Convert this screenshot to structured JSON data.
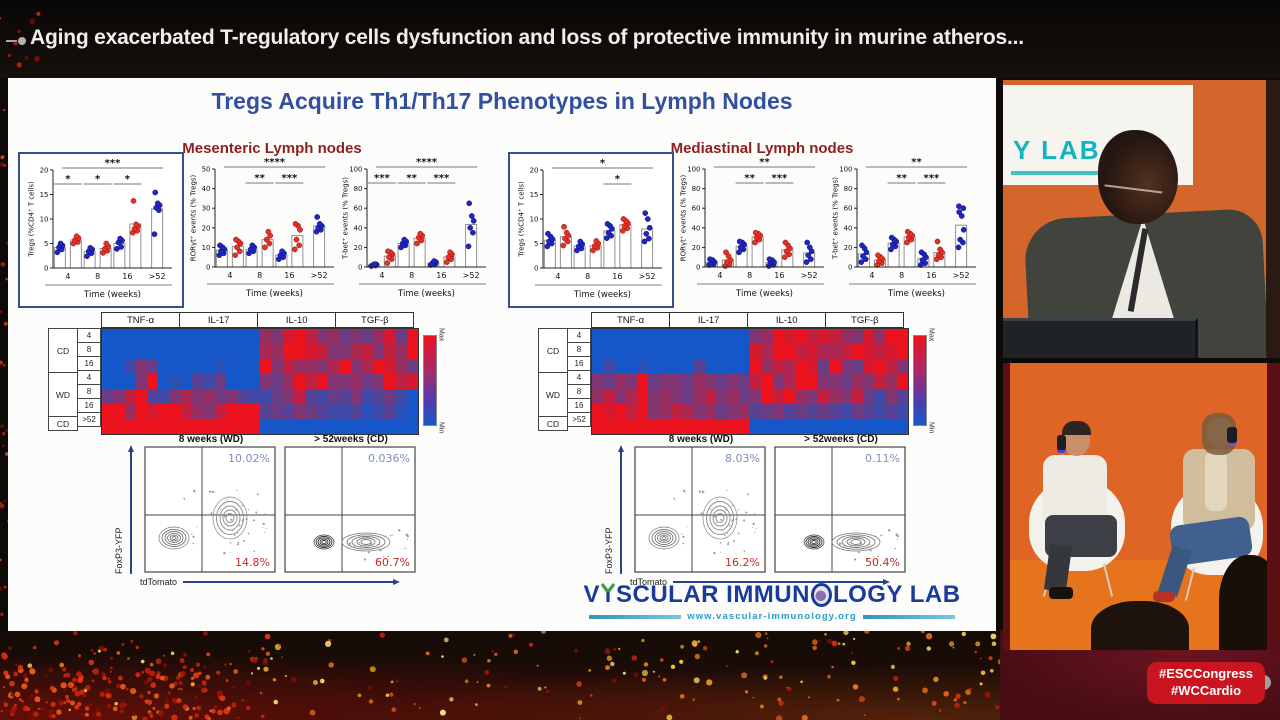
{
  "header": {
    "title": "Aging exacerbated T-regulatory cells dysfunction and loss of protective immunity in murine atheros..."
  },
  "slide": {
    "title": "Tregs Acquire Th1/Th17 Phenotypes in Lymph Nodes",
    "panels": [
      {
        "key": "mesenteric",
        "heading": "Mesenteric Lymph nodes"
      },
      {
        "key": "mediastinal",
        "heading": "Mediastinal Lymph nodes"
      }
    ],
    "logo": {
      "part1": "V",
      "part2": "SCULAR IMMUN",
      "part3": "LOGY LAB",
      "url": "www.vascular-immunology.org"
    }
  },
  "chart_data": [
    {
      "key": "m-tregs",
      "type": "scatter",
      "panel": "Mesenteric Lymph nodes",
      "ylabel": "Tregs (%CD4⁺ T cells)",
      "xlabel": "Time (weeks)",
      "ylim": [
        0,
        20
      ],
      "yticks": [
        0,
        5,
        10,
        15,
        20
      ],
      "categories": [
        "4",
        "8",
        "16",
        ">52"
      ],
      "series_colors": {
        "blue": "#2025c8",
        "red": "#e63126"
      },
      "blue": [
        [
          3.2,
          3.8,
          4.2,
          4.6,
          5.0
        ],
        [
          2.4,
          3.0,
          3.4,
          3.8,
          4.1
        ],
        [
          3.9,
          4.3,
          5.2,
          5.6,
          6.0
        ],
        [
          6.9,
          11.8,
          12.3,
          12.8,
          13.2,
          15.4
        ]
      ],
      "red": [
        [
          5.0,
          5.3,
          5.7,
          6.1,
          6.5
        ],
        [
          3.1,
          3.5,
          3.9,
          4.4,
          5.0
        ],
        [
          7.2,
          7.6,
          8.0,
          8.5,
          8.9,
          13.7
        ],
        null
      ],
      "sig_overall": "***",
      "sig_groups": [
        "*",
        "*",
        "*",
        null
      ]
    },
    {
      "key": "m-roryt",
      "type": "scatter",
      "panel": "Mesenteric Lymph nodes",
      "ylabel": "RORγt⁺ events (% Tregs)",
      "xlabel": "Time (weeks)",
      "ylim": [
        0,
        50
      ],
      "yticks": [
        0,
        10,
        20,
        30,
        40,
        50
      ],
      "categories": [
        "4",
        "8",
        "16",
        ">52"
      ],
      "series_colors": {
        "blue": "#2025c8",
        "red": "#e63126"
      },
      "blue": [
        [
          6,
          7,
          8,
          9,
          10,
          11
        ],
        [
          7,
          8,
          9,
          10,
          11
        ],
        [
          4,
          5,
          6,
          7,
          8
        ],
        [
          18,
          19,
          20,
          21,
          22,
          25.5
        ]
      ],
      "red": [
        [
          6,
          8,
          10,
          12,
          13,
          14
        ],
        [
          10,
          12,
          14,
          16,
          18
        ],
        [
          9,
          11,
          14,
          19,
          21,
          22
        ],
        null
      ],
      "sig_overall": "****",
      "sig_groups": [
        null,
        "**",
        "***",
        null
      ]
    },
    {
      "key": "m-tbet",
      "type": "scatter",
      "panel": "Mesenteric Lymph nodes",
      "ylabel": "T-bet⁺ events (% Tregs)",
      "xlabel": "Time (weeks)",
      "ylim": [
        0,
        100
      ],
      "yticks": [
        0,
        20,
        40,
        60,
        80,
        100
      ],
      "categories": [
        "4",
        "8",
        "16",
        ">52"
      ],
      "series_colors": {
        "blue": "#2025c8",
        "red": "#e63126"
      },
      "blue": [
        [
          1,
          1.5,
          2,
          2.5,
          3
        ],
        [
          20,
          22,
          24,
          26,
          28
        ],
        [
          2,
          3,
          4,
          5,
          6
        ],
        [
          21,
          35,
          40,
          47,
          52,
          65
        ]
      ],
      "red": [
        [
          4,
          8,
          10,
          13,
          15,
          16
        ],
        [
          24,
          27,
          30,
          32,
          34
        ],
        [
          5,
          8,
          10,
          13,
          15
        ],
        null
      ],
      "sig_overall": "****",
      "sig_groups": [
        "***",
        "**",
        "***",
        null
      ]
    },
    {
      "key": "d-tregs",
      "type": "scatter",
      "panel": "Mediastinal Lymph nodes",
      "ylabel": "Tregs (%CD4⁺ T cells)",
      "xlabel": "Time (weeks)",
      "ylim": [
        0,
        20
      ],
      "yticks": [
        0,
        5,
        10,
        15,
        20
      ],
      "categories": [
        "4",
        "8",
        "16",
        ">52"
      ],
      "series_colors": {
        "blue": "#2025c8",
        "red": "#e63126"
      },
      "blue": [
        [
          4.4,
          5.0,
          5.4,
          5.9,
          6.4,
          7.0
        ],
        [
          3.6,
          4.0,
          4.4,
          4.9,
          5.4
        ],
        [
          6.1,
          6.6,
          7.2,
          8.0,
          8.6,
          9.0
        ],
        [
          5.4,
          6.0,
          7.0,
          8.2,
          10.0,
          11.2
        ]
      ],
      "red": [
        [
          4.6,
          5.4,
          6.0,
          6.6,
          7.2,
          8.4
        ],
        [
          3.6,
          4.1,
          4.5,
          5.0,
          5.5
        ],
        [
          7.6,
          8.1,
          8.6,
          9.1,
          9.6,
          10.0
        ],
        null
      ],
      "sig_overall": "*",
      "sig_groups": [
        null,
        null,
        "*",
        null
      ]
    },
    {
      "key": "d-roryt",
      "type": "scatter",
      "panel": "Mediastinal Lymph nodes",
      "ylabel": "RORγt⁺ events (% Tregs)",
      "xlabel": "Time (weeks)",
      "ylim": [
        0,
        100
      ],
      "yticks": [
        0,
        20,
        40,
        60,
        80,
        100
      ],
      "categories": [
        "4",
        "8",
        "16",
        ">52"
      ],
      "series_colors": {
        "blue": "#2025c8",
        "red": "#e63126"
      },
      "blue": [
        [
          2,
          3,
          4,
          5,
          7,
          8
        ],
        [
          15,
          18,
          20,
          23,
          25,
          26
        ],
        [
          1,
          2,
          4,
          5,
          7,
          8
        ],
        [
          5,
          8,
          12,
          16,
          20,
          25
        ]
      ],
      "red": [
        [
          1,
          3,
          5,
          7,
          11,
          15
        ],
        [
          25,
          28,
          30,
          32,
          34,
          35
        ],
        [
          10,
          13,
          16,
          19,
          22,
          25
        ],
        null
      ],
      "sig_overall": "**",
      "sig_groups": [
        null,
        "**",
        "***",
        null
      ]
    },
    {
      "key": "d-tbet",
      "type": "scatter",
      "panel": "Mediastinal Lymph nodes",
      "ylabel": "T-bet⁺ events (% Tregs)",
      "xlabel": "Time (weeks)",
      "ylim": [
        0,
        100
      ],
      "yticks": [
        0,
        20,
        40,
        60,
        80,
        100
      ],
      "categories": [
        "4",
        "8",
        "16",
        ">52"
      ],
      "series_colors": {
        "blue": "#2025c8",
        "red": "#e63126"
      },
      "blue": [
        [
          5,
          8,
          11,
          15,
          19,
          22
        ],
        [
          18,
          21,
          23,
          26,
          28,
          30
        ],
        [
          2,
          4,
          7,
          10,
          13,
          15
        ],
        [
          20,
          25,
          28,
          38,
          52,
          56,
          60,
          62
        ]
      ],
      "red": [
        [
          2,
          4,
          6,
          8,
          10,
          12
        ],
        [
          25,
          28,
          30,
          32,
          34,
          36
        ],
        [
          8,
          10,
          12,
          15,
          18,
          26
        ],
        null
      ],
      "sig_overall": "**",
      "sig_groups": [
        null,
        "**",
        "***",
        null
      ]
    },
    {
      "key": "m-heatmap",
      "type": "heatmap",
      "panel": "Mesenteric Lymph nodes",
      "columns": [
        "TNF-α",
        "IL-17",
        "IL-10",
        "TGF-β"
      ],
      "row_groups": [
        {
          "label": "CD",
          "weeks": [
            "4",
            "8",
            "16"
          ]
        },
        {
          "label": "WD",
          "weeks": [
            "4",
            "8",
            "16"
          ]
        },
        {
          "label": "CD",
          "weeks": [
            ">52"
          ]
        }
      ],
      "colorbar": {
        "max_label": "Max",
        "min_label": "Min"
      },
      "rows": [
        [
          0,
          0,
          0,
          0,
          0,
          0,
          0,
          0,
          0,
          0,
          0,
          0,
          0,
          0,
          0.6,
          0.5,
          0.9,
          1,
          0.8,
          0.5,
          0.6,
          0.4,
          0.5,
          0.4,
          0.6,
          0.9,
          0.4,
          1
        ],
        [
          0,
          0,
          0,
          0,
          0,
          0,
          0,
          0,
          0,
          0,
          0,
          0,
          0,
          0,
          0.7,
          0.6,
          1,
          1,
          0.9,
          0.8,
          0.5,
          0.5,
          0.7,
          0.8,
          0.5,
          0.8,
          0.6,
          1
        ],
        [
          0,
          0,
          0.2,
          0.5,
          0.4,
          0,
          0,
          0,
          0,
          0,
          0.1,
          0,
          0,
          0,
          1,
          0.5,
          0.8,
          0.6,
          0.6,
          0.5,
          0.7,
          1,
          0.5,
          0.7,
          1,
          0.9,
          0.6,
          0.4
        ],
        [
          0,
          0,
          0,
          0.5,
          1,
          0,
          0.1,
          0,
          0.3,
          0.2,
          0.4,
          0,
          0,
          0,
          0.5,
          0.4,
          0.6,
          1,
          0.8,
          1,
          0.5,
          0.5,
          0.6,
          0.4,
          0.5,
          1,
          0.8,
          0.9
        ],
        [
          0.4,
          0.5,
          0.8,
          1,
          0.3,
          0.2,
          0.5,
          0.7,
          0.5,
          0.6,
          0.4,
          0.5,
          0.3,
          0.2,
          0.2,
          0.4,
          0.5,
          0.8,
          0.3,
          0.2,
          0.4,
          0.3,
          0.5,
          0.2,
          0.3,
          0.4,
          0.2,
          0
        ],
        [
          1,
          1,
          0.6,
          1,
          0.9,
          1,
          1,
          0.8,
          0.6,
          0.5,
          0.8,
          1,
          1,
          1,
          0.3,
          0.4,
          0.3,
          0.5,
          0.4,
          0.3,
          0.2,
          0.2,
          0.3,
          0.1,
          0.2,
          0.3,
          0.1,
          0
        ],
        [
          1,
          1,
          1,
          1,
          1,
          1,
          1,
          1,
          1,
          1,
          1,
          1,
          1,
          1,
          0,
          0,
          0,
          0,
          0,
          0,
          0,
          0,
          0,
          0,
          0,
          0,
          0,
          0
        ]
      ]
    },
    {
      "key": "d-heatmap",
      "type": "heatmap",
      "panel": "Mediastinal Lymph nodes",
      "columns": [
        "TNF-α",
        "IL-17",
        "IL-10",
        "TGF-β"
      ],
      "row_groups": [
        {
          "label": "CD",
          "weeks": [
            "4",
            "8",
            "16"
          ]
        },
        {
          "label": "WD",
          "weeks": [
            "4",
            "8",
            "16"
          ]
        },
        {
          "label": "CD",
          "weeks": [
            ">52"
          ]
        }
      ],
      "colorbar": {
        "max_label": "Max",
        "min_label": "Min"
      },
      "rows": [
        [
          0,
          0,
          0,
          0,
          0,
          0,
          0,
          0,
          0,
          0,
          0,
          0,
          0,
          0,
          0.5,
          0.6,
          1,
          0.9,
          1,
          0.8,
          0.9,
          0.8,
          0.6,
          0.5,
          0.9,
          0.6,
          1,
          1
        ],
        [
          0,
          0,
          0,
          0,
          0,
          0,
          0,
          0,
          0,
          0,
          0,
          0,
          0,
          0,
          0.9,
          0.7,
          1,
          1,
          0.8,
          0.9,
          0.7,
          0.7,
          0.8,
          1,
          0.9,
          0.8,
          0.9,
          1
        ],
        [
          0,
          0.2,
          0,
          0,
          0.1,
          0,
          0,
          0,
          0,
          0.3,
          0,
          0,
          0,
          0,
          1,
          0.6,
          0.8,
          0.7,
          1,
          0.9,
          0.4,
          1,
          0.5,
          0.4,
          0.9,
          1,
          0.8,
          0.5
        ],
        [
          0.5,
          0.4,
          0.6,
          0.5,
          1,
          0.4,
          0.5,
          0.5,
          0.4,
          0.6,
          0.5,
          0.4,
          0.5,
          0.4,
          0.8,
          1,
          0.5,
          0.7,
          1,
          1,
          0.5,
          0.5,
          0.4,
          0.6,
          0.5,
          0.8,
          0.6,
          1
        ],
        [
          0.6,
          0.8,
          0.5,
          0.7,
          1,
          0.5,
          0.6,
          0.5,
          0.4,
          0.6,
          0.8,
          0.5,
          0.6,
          0.4,
          0.5,
          1,
          0.8,
          1,
          0.6,
          0.5,
          0.8,
          0.6,
          0.5,
          0.8,
          0.4,
          0.2,
          0.5,
          0.3
        ],
        [
          1,
          0.9,
          1,
          0.8,
          1,
          0.5,
          0.6,
          0.8,
          0.7,
          0.5,
          0.6,
          0.4,
          0.5,
          0.6,
          0.3,
          0.4,
          0.5,
          0.3,
          0.4,
          0.3,
          0.4,
          0.3,
          0.2,
          0.4,
          0.3,
          0.2,
          0.3,
          0.2
        ],
        [
          1,
          1,
          1,
          1,
          1,
          1,
          1,
          1,
          1,
          1,
          1,
          1,
          1,
          1,
          0,
          0,
          0,
          0,
          0,
          0,
          0,
          0,
          0,
          0,
          0,
          0,
          0,
          0
        ]
      ]
    },
    {
      "key": "m-flow",
      "type": "scatter",
      "subtype": "flow-quadrant",
      "panel": "Mesenteric Lymph nodes",
      "ylabel": "FoxP3-YFP",
      "xlabel": "tdTomato",
      "plots": [
        {
          "title": "8 weeks (WD)",
          "style": "wd8",
          "top_right_pct": "10.02%",
          "bottom_right_pct": "14.8%"
        },
        {
          "title": "> 52weeks (CD)",
          "style": "cd52",
          "top_right_pct": "0.036%",
          "bottom_right_pct": "60.7%"
        }
      ]
    },
    {
      "key": "d-flow",
      "type": "scatter",
      "subtype": "flow-quadrant",
      "panel": "Mediastinal Lymph nodes",
      "ylabel": "FoxP3-YFP",
      "xlabel": "tdTomato",
      "plots": [
        {
          "title": "8 weeks (WD)",
          "style": "wd8",
          "top_right_pct": "8.03%",
          "bottom_right_pct": "16.2%"
        },
        {
          "title": "> 52weeks (CD)",
          "style": "cd52",
          "top_right_pct": "0.11%",
          "bottom_right_pct": "50.4%"
        }
      ]
    }
  ],
  "video": {
    "top_feed": {
      "sign_text": "Y LAB"
    },
    "bottom_feed": {}
  },
  "badge": {
    "hashtags": [
      "#ESCCongress",
      "#WCCardio"
    ]
  }
}
